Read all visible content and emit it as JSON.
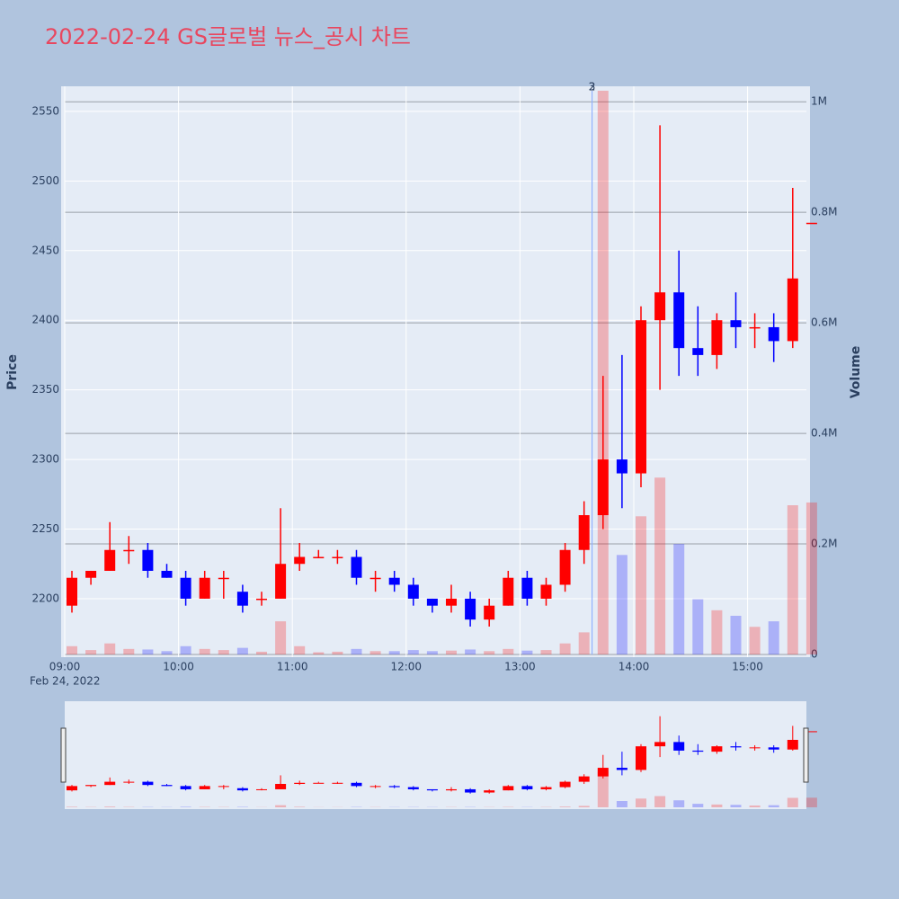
{
  "chart_data": {
    "type": "candlestick",
    "title": "2022-02-24 GS글로벌 뉴스_공시 차트",
    "y_label": "Price",
    "y2_label": "Volume",
    "x_date_label": "Feb 24, 2022",
    "up_color": "#ff0000",
    "down_color": "#0000ff",
    "x": [
      "2022-02-24 09:00",
      "2022-02-24 09:10",
      "2022-02-24 09:20",
      "2022-02-24 09:30",
      "2022-02-24 09:40",
      "2022-02-24 09:50",
      "2022-02-24 10:00",
      "2022-02-24 10:10",
      "2022-02-24 10:20",
      "2022-02-24 10:30",
      "2022-02-24 10:40",
      "2022-02-24 10:50",
      "2022-02-24 11:00",
      "2022-02-24 11:10",
      "2022-02-24 11:20",
      "2022-02-24 11:30",
      "2022-02-24 11:40",
      "2022-02-24 11:50",
      "2022-02-24 12:00",
      "2022-02-24 12:10",
      "2022-02-24 12:20",
      "2022-02-24 12:30",
      "2022-02-24 12:40",
      "2022-02-24 12:50",
      "2022-02-24 13:00",
      "2022-02-24 13:10",
      "2022-02-24 13:20",
      "2022-02-24 13:30",
      "2022-02-24 13:40",
      "2022-02-24 13:50",
      "2022-02-24 14:00",
      "2022-02-24 14:10",
      "2022-02-24 14:20",
      "2022-02-24 14:30",
      "2022-02-24 14:40",
      "2022-02-24 14:50",
      "2022-02-24 15:00",
      "2022-02-24 15:10",
      "2022-02-24 15:20",
      "2022-02-24 15:30"
    ],
    "open": [
      2195,
      2215,
      2220,
      2235,
      2235,
      2220,
      2215,
      2200,
      2215,
      2205,
      2200,
      2200,
      2225,
      2230,
      2230,
      2230,
      2215,
      2215,
      2210,
      2200,
      2195,
      2200,
      2185,
      2195,
      2215,
      2200,
      2210,
      2235,
      2260,
      2300,
      2290,
      2400,
      2420,
      2380,
      2375,
      2400,
      2395,
      2395,
      2385,
      2470
    ],
    "high": [
      2220,
      2220,
      2255,
      2245,
      2240,
      2225,
      2220,
      2220,
      2220,
      2210,
      2205,
      2265,
      2240,
      2235,
      2235,
      2235,
      2220,
      2220,
      2215,
      2200,
      2210,
      2205,
      2200,
      2220,
      2220,
      2215,
      2240,
      2270,
      2360,
      2375,
      2410,
      2540,
      2450,
      2410,
      2405,
      2420,
      2405,
      2405,
      2495,
      2470
    ],
    "low": [
      2190,
      2210,
      2220,
      2225,
      2215,
      2215,
      2195,
      2200,
      2200,
      2190,
      2195,
      2200,
      2220,
      2230,
      2225,
      2210,
      2205,
      2205,
      2195,
      2190,
      2190,
      2180,
      2180,
      2195,
      2195,
      2195,
      2205,
      2225,
      2250,
      2265,
      2280,
      2350,
      2360,
      2360,
      2365,
      2380,
      2380,
      2370,
      2380,
      2470
    ],
    "close": [
      2215,
      2220,
      2235,
      2235,
      2220,
      2215,
      2200,
      2215,
      2215,
      2195,
      2200,
      2225,
      2230,
      2230,
      2230,
      2215,
      2215,
      2210,
      2200,
      2195,
      2200,
      2185,
      2195,
      2215,
      2200,
      2210,
      2235,
      2260,
      2300,
      2290,
      2400,
      2420,
      2380,
      2375,
      2400,
      2395,
      2395,
      2385,
      2430,
      2470
    ],
    "volume": [
      15000,
      8000,
      20000,
      10000,
      9000,
      6000,
      15000,
      10000,
      8000,
      12000,
      5000,
      60000,
      15000,
      4000,
      5000,
      10000,
      6000,
      6000,
      8000,
      6000,
      7000,
      9000,
      6000,
      10000,
      7000,
      8000,
      20000,
      40000,
      1020000,
      180000,
      250000,
      320000,
      200000,
      100000,
      80000,
      70000,
      50000,
      60000,
      270000,
      275000
    ],
    "xlim": [
      "2022-02-24 09:00",
      "2022-02-24 15:31"
    ],
    "xticks": [
      {
        "value": "2022-02-24 09:00",
        "label": "09:00"
      },
      {
        "value": "2022-02-24 10:00",
        "label": "10:00"
      },
      {
        "value": "2022-02-24 11:00",
        "label": "11:00"
      },
      {
        "value": "2022-02-24 12:00",
        "label": "12:00"
      },
      {
        "value": "2022-02-24 13:00",
        "label": "13:00"
      },
      {
        "value": "2022-02-24 14:00",
        "label": "14:00"
      },
      {
        "value": "2022-02-24 15:00",
        "label": "15:00"
      }
    ],
    "ylim": [
      2158,
      2568
    ],
    "yticks": [
      2200,
      2250,
      2300,
      2350,
      2400,
      2450,
      2500,
      2550
    ],
    "y2lim": [
      0,
      1028000
    ],
    "y2ticks": [
      0,
      {
        "value": 200000,
        "label": "0.2M"
      },
      {
        "value": 400000,
        "label": "0.4M"
      },
      {
        "value": 600000,
        "label": "0.6M"
      },
      {
        "value": 800000,
        "label": "0.8M"
      },
      {
        "value": 1000000,
        "label": "1M"
      }
    ],
    "annotations": [
      {
        "x": "2022-02-24 13:38",
        "text": "2"
      },
      {
        "x": "2022-02-24 13:38",
        "text": "3"
      }
    ]
  }
}
